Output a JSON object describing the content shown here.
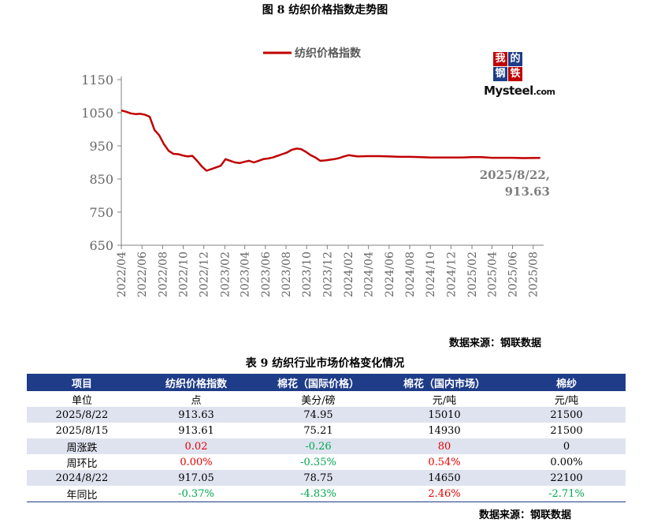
{
  "figure_title": "图 8    纺织价格指数走势图",
  "logo": {
    "chars": [
      "我",
      "的",
      "钢",
      "铁"
    ],
    "brand": "Mysteel",
    "domain": ".com"
  },
  "colors": {
    "line": "#c00000",
    "header_bg": "#1f3c88",
    "row_alt": "#dfe3ef",
    "up": "#e60000",
    "down": "#00a650"
  },
  "chart_data": {
    "type": "line",
    "legend": "top-center",
    "grid": false,
    "ylim": [
      650,
      1150
    ],
    "yticks": [
      650,
      750,
      850,
      950,
      1050,
      1150
    ],
    "xlim": [
      "2022-04",
      "2025-09"
    ],
    "xticks": [
      "2022/04",
      "2022/06",
      "2022/08",
      "2022/10",
      "2022/12",
      "2023/02",
      "2023/04",
      "2023/06",
      "2023/08",
      "2023/10",
      "2023/12",
      "2024/02",
      "2024/04",
      "2024/06",
      "2024/08",
      "2024/10",
      "2024/12",
      "2025/02",
      "2025/04",
      "2025/06",
      "2025/08"
    ],
    "series": [
      {
        "name": "纺织价格指数",
        "points": [
          [
            "2022-04-01",
            1057
          ],
          [
            "2022-04-15",
            1053
          ],
          [
            "2022-04-29",
            1048
          ],
          [
            "2022-05-13",
            1046
          ],
          [
            "2022-05-27",
            1047
          ],
          [
            "2022-06-10",
            1044
          ],
          [
            "2022-06-24",
            1038
          ],
          [
            "2022-07-08",
            998
          ],
          [
            "2022-07-22",
            982
          ],
          [
            "2022-08-05",
            955
          ],
          [
            "2022-08-19",
            935
          ],
          [
            "2022-09-02",
            926
          ],
          [
            "2022-09-16",
            925
          ],
          [
            "2022-09-30",
            921
          ],
          [
            "2022-10-14",
            918
          ],
          [
            "2022-10-28",
            920
          ],
          [
            "2022-11-11",
            905
          ],
          [
            "2022-11-25",
            888
          ],
          [
            "2022-12-09",
            875
          ],
          [
            "2022-12-23",
            880
          ],
          [
            "2023-01-06",
            885
          ],
          [
            "2023-01-20",
            890
          ],
          [
            "2023-02-03",
            910
          ],
          [
            "2023-02-17",
            905
          ],
          [
            "2023-03-03",
            900
          ],
          [
            "2023-03-17",
            898
          ],
          [
            "2023-03-31",
            902
          ],
          [
            "2023-04-14",
            905
          ],
          [
            "2023-04-28",
            900
          ],
          [
            "2023-05-12",
            905
          ],
          [
            "2023-05-26",
            910
          ],
          [
            "2023-06-09",
            912
          ],
          [
            "2023-06-23",
            915
          ],
          [
            "2023-07-07",
            920
          ],
          [
            "2023-07-21",
            925
          ],
          [
            "2023-08-04",
            930
          ],
          [
            "2023-08-18",
            938
          ],
          [
            "2023-09-01",
            942
          ],
          [
            "2023-09-15",
            940
          ],
          [
            "2023-09-29",
            932
          ],
          [
            "2023-10-13",
            922
          ],
          [
            "2023-10-27",
            915
          ],
          [
            "2023-11-10",
            905
          ],
          [
            "2023-11-24",
            906
          ],
          [
            "2023-12-08",
            908
          ],
          [
            "2023-12-22",
            910
          ],
          [
            "2024-01-05",
            913
          ],
          [
            "2024-01-19",
            918
          ],
          [
            "2024-02-02",
            922
          ],
          [
            "2024-02-16",
            920
          ],
          [
            "2024-03-01",
            918
          ],
          [
            "2024-03-29",
            919
          ],
          [
            "2024-05-01",
            919
          ],
          [
            "2024-06-01",
            918
          ],
          [
            "2024-07-01",
            917
          ],
          [
            "2024-08-01",
            917
          ],
          [
            "2024-09-01",
            916
          ],
          [
            "2024-10-01",
            915
          ],
          [
            "2024-11-01",
            915
          ],
          [
            "2024-12-01",
            915
          ],
          [
            "2025-01-01",
            915
          ],
          [
            "2025-02-01",
            916
          ],
          [
            "2025-03-01",
            916
          ],
          [
            "2025-04-01",
            914
          ],
          [
            "2025-05-01",
            914
          ],
          [
            "2025-06-01",
            914
          ],
          [
            "2025-07-01",
            913
          ],
          [
            "2025-08-22",
            913.63
          ]
        ]
      }
    ],
    "annotation": {
      "date_label": "2025/8/22,",
      "value_label": "913.63"
    }
  },
  "source_chart": "数据来源：钢联数据",
  "table_title": "表 9 纺织行业市场价格变化情况",
  "table": {
    "headers": [
      "项目",
      "纺织价格指数",
      "棉花（国际价格）",
      "棉花（国内市场）",
      "棉纱"
    ],
    "rows": [
      {
        "cells": [
          "单位",
          "点",
          "美分/磅",
          "元/吨",
          "元/吨"
        ],
        "styles": [
          "",
          "",
          "",
          "",
          ""
        ]
      },
      {
        "cells": [
          "2025/8/22",
          "913.63",
          "74.95",
          "15010",
          "21500"
        ],
        "styles": [
          "",
          "",
          "",
          "",
          ""
        ]
      },
      {
        "cells": [
          "2025/8/15",
          "913.61",
          "75.21",
          "14930",
          "21500"
        ],
        "styles": [
          "",
          "",
          "",
          "",
          ""
        ]
      },
      {
        "cells": [
          "周涨跌",
          "0.02",
          "-0.26",
          "80",
          "0"
        ],
        "styles": [
          "",
          "red",
          "green",
          "red",
          ""
        ]
      },
      {
        "cells": [
          "周环比",
          "0.00%",
          "-0.35%",
          "0.54%",
          "0.00%"
        ],
        "styles": [
          "",
          "red",
          "green",
          "red",
          ""
        ]
      },
      {
        "cells": [
          "2024/8/22",
          "917.05",
          "78.75",
          "14650",
          "22100"
        ],
        "styles": [
          "",
          "",
          "",
          "",
          ""
        ]
      },
      {
        "cells": [
          "年同比",
          "-0.37%",
          "-4.83%",
          "2.46%",
          "-2.71%"
        ],
        "styles": [
          "",
          "green",
          "green",
          "red",
          "green"
        ]
      }
    ]
  },
  "source_table": "数据来源：钢联数据"
}
